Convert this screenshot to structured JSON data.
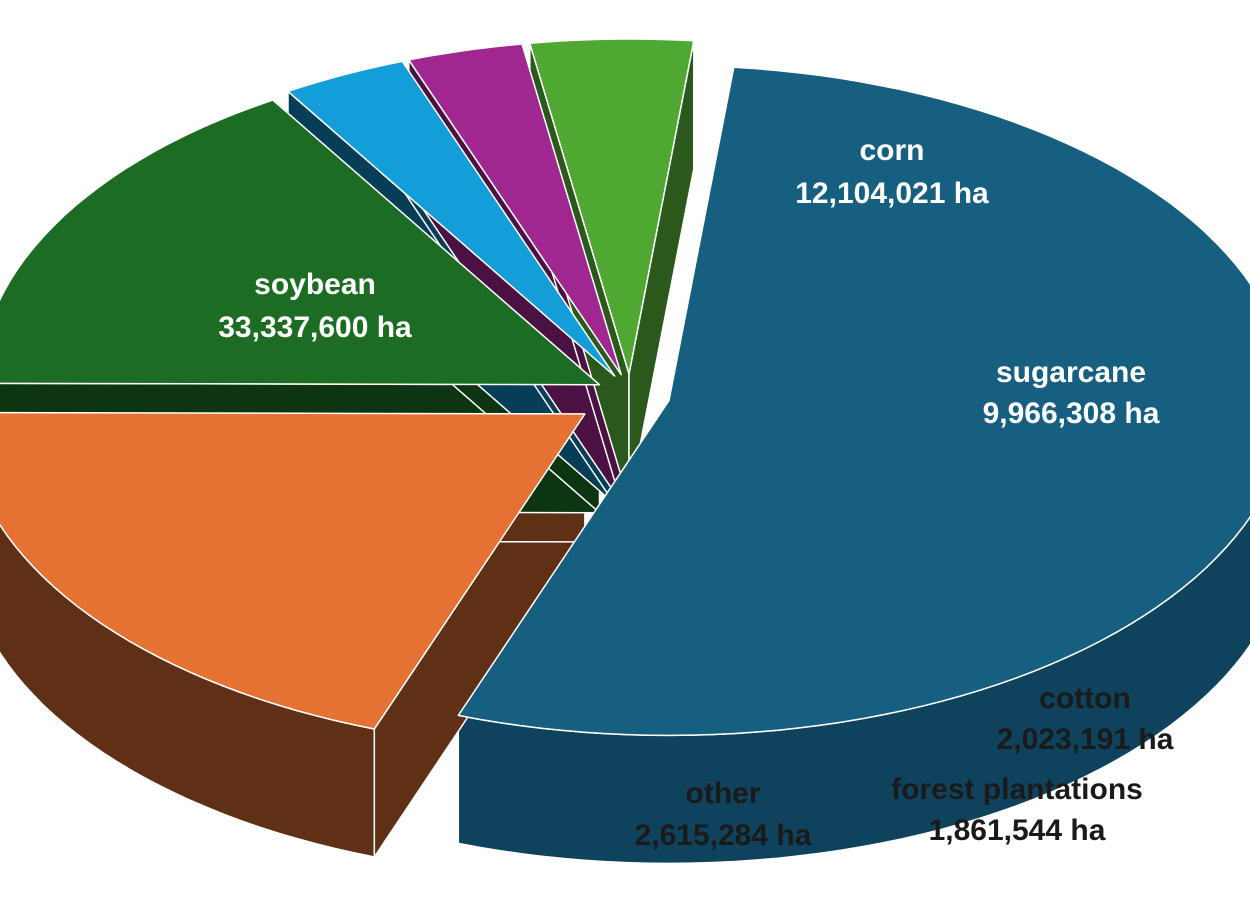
{
  "chart_data": {
    "type": "pie",
    "style": "3d-exploded",
    "title": "",
    "slices": [
      {
        "label": "soybean",
        "value": 33337600,
        "value_label": "33,337,600 ha",
        "color": "#165f81",
        "side_color": "#0f435d",
        "label_color": "#ffffff"
      },
      {
        "label": "corn",
        "value": 12104021,
        "value_label": "12,104,021 ha",
        "color": "#e57132",
        "side_color": "#5f3015",
        "label_color": "#ffffff"
      },
      {
        "label": "sugarcane",
        "value": 9966308,
        "value_label": "9,966,308 ha",
        "color": "#1c6d23",
        "side_color": "#0e3511",
        "label_color": "#ffffff"
      },
      {
        "label": "cotton",
        "value": 2023191,
        "value_label": "2,023,191 ha",
        "color": "#139dd9",
        "side_color": "#073e57",
        "label_color": "#1a1a1a"
      },
      {
        "label": "forest plantations",
        "value": 1861544,
        "value_label": "1,861,544 ha",
        "color": "#a0278f",
        "side_color": "#4a1142",
        "label_color": "#1a1a1a"
      },
      {
        "label": "other",
        "value": 2615284,
        "value_label": "2,615,284 ha",
        "color": "#4ea832",
        "side_color": "#2a591b",
        "label_color": "#1a1a1a"
      }
    ]
  }
}
